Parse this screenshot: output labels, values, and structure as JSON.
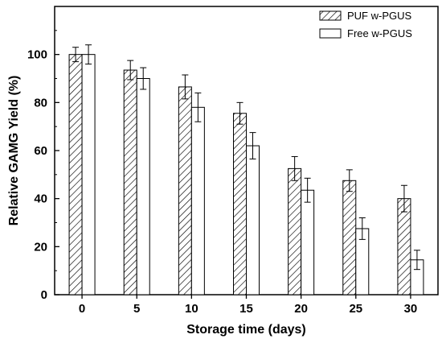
{
  "chart_data": {
    "type": "bar",
    "xlabel": "Storage time (days)",
    "ylabel": "Relative GAMG Yield (%)",
    "categories": [
      "0",
      "5",
      "10",
      "15",
      "20",
      "25",
      "30"
    ],
    "ylim": [
      0,
      120
    ],
    "yticks": [
      "0",
      "20",
      "40",
      "60",
      "80",
      "100"
    ],
    "series": [
      {
        "name": "PUF w-PGUS",
        "fill": "hatched",
        "values": [
          100,
          93.5,
          86.5,
          75.5,
          52.5,
          47.5,
          40
        ],
        "errors": [
          3,
          4,
          5,
          4.5,
          5,
          4.5,
          5.5
        ]
      },
      {
        "name": "Free w-PGUS",
        "fill": "white",
        "values": [
          100,
          90,
          78,
          62,
          43.5,
          27.5,
          14.5
        ],
        "errors": [
          4,
          4.5,
          6,
          5.5,
          5,
          4.5,
          4
        ]
      }
    ],
    "legend_position": "top-right",
    "grid": false
  }
}
